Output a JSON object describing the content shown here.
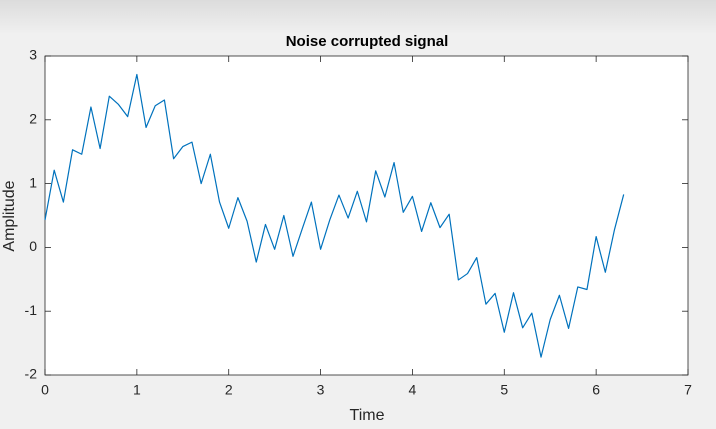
{
  "chart_data": {
    "type": "line",
    "title": "Noise corrupted signal",
    "x_label": "Time",
    "y_label": "Amplitude",
    "x": [
      0,
      0.1,
      0.2,
      0.3,
      0.4,
      0.5,
      0.6,
      0.7,
      0.8,
      0.9,
      1.0,
      1.1,
      1.2,
      1.3,
      1.4,
      1.5,
      1.6,
      1.7,
      1.8,
      1.9,
      2.0,
      2.1,
      2.2,
      2.3,
      2.4,
      2.5,
      2.6,
      2.7,
      2.8,
      2.9,
      3.0,
      3.1,
      3.2,
      3.3,
      3.4,
      3.5,
      3.6,
      3.7,
      3.8,
      3.9,
      4.0,
      4.1,
      4.2,
      4.3,
      4.4,
      4.5,
      4.6,
      4.7,
      4.8,
      4.9,
      5.0,
      5.1,
      5.2,
      5.3,
      5.4,
      5.5,
      5.6,
      5.7,
      5.8,
      5.9,
      6.0,
      6.1,
      6.2,
      6.3
    ],
    "values": [
      0.43,
      1.21,
      0.71,
      1.53,
      1.46,
      2.2,
      1.55,
      2.37,
      2.24,
      2.05,
      2.71,
      1.88,
      2.22,
      2.31,
      1.39,
      1.58,
      1.65,
      1.0,
      1.46,
      0.71,
      0.3,
      0.78,
      0.41,
      -0.23,
      0.36,
      -0.03,
      0.5,
      -0.14,
      0.29,
      0.71,
      -0.03,
      0.43,
      0.82,
      0.46,
      0.88,
      0.4,
      1.2,
      0.79,
      1.33,
      0.55,
      0.8,
      0.25,
      0.7,
      0.31,
      0.52,
      -0.51,
      -0.41,
      -0.16,
      -0.89,
      -0.72,
      -1.33,
      -0.71,
      -1.26,
      -1.03,
      -1.72,
      -1.13,
      -0.75,
      -1.27,
      -0.62,
      -0.66,
      0.17,
      -0.39,
      0.28,
      0.83
    ],
    "color": "#0072bd",
    "xlim": [
      0,
      7
    ],
    "xticks": [
      0,
      1,
      2,
      3,
      4,
      5,
      6,
      7
    ],
    "ylim": [
      -2,
      3
    ],
    "yticks": [
      -2,
      -1,
      0,
      1,
      2,
      3
    ]
  }
}
